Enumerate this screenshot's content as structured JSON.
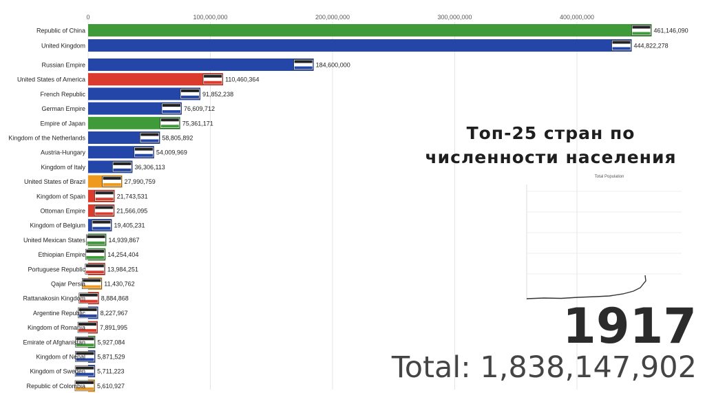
{
  "title_lines": [
    "Топ-25 стран по",
    "численности населения"
  ],
  "year": "1917",
  "total_text": "Total: 1,838,147,902",
  "mini_chart": {
    "title": "Total Population"
  },
  "colors": {
    "green": "#3f9a3a",
    "blue": "#2346a8",
    "red": "#db3b2c",
    "orange": "#ef9a1f",
    "grid": "#e4e4e4"
  },
  "chart_data": {
    "type": "bar",
    "orientation": "horizontal",
    "xlim": [
      0,
      500000000
    ],
    "x_ticks": [
      0,
      100000000,
      200000000,
      300000000,
      400000000
    ],
    "x_tick_labels": [
      "0",
      "100,000,000",
      "200,000,000",
      "300,000,000",
      "400,000,000"
    ],
    "grid": true,
    "categories": [
      "Republic of China",
      "United Kingdom",
      "Russian Empire",
      "United States of America",
      "French Republic",
      "German Empire",
      "Empire of Japan",
      "Kingdom of the Netherlands",
      "Austria-Hungary",
      "Kingdom of Italy",
      "United States of Brazil",
      "Kingdom of Spain",
      "Ottoman Empire",
      "Kingdom of Belgium",
      "United Mexican States",
      "Ethiopian Empire",
      "Portuguese Republic",
      "Qajar Persia",
      "Rattanakosin Kingdom",
      "Argentine Republic",
      "Kingdom of Romania",
      "Emirate of Afghanistan",
      "Kingdom of Nepal",
      "Kingdom of Sweden",
      "Republic of Colombia"
    ],
    "values": [
      461146090,
      444822278,
      184600000,
      110460364,
      91852238,
      76609712,
      75361171,
      58805892,
      54009969,
      36306113,
      27990759,
      21743531,
      21566095,
      19405231,
      14939867,
      14254404,
      13984251,
      11430762,
      8884868,
      8227967,
      7891995,
      5927084,
      5871529,
      5711223,
      5610927
    ],
    "value_labels": [
      "461,146,090",
      "444,822,278",
      "184,600,000",
      "110,460,364",
      "91,852,238",
      "76,609,712",
      "75,361,171",
      "58,805,892",
      "54,009,969",
      "36,306,113",
      "27,990,759",
      "21,743,531",
      "21,566,095",
      "19,405,231",
      "14,939,867",
      "14,254,404",
      "13,984,251",
      "11,430,762",
      "8,884,868",
      "8,227,967",
      "7,891,995",
      "5,927,084",
      "5,871,529",
      "5,711,223",
      "5,610,927"
    ],
    "bar_colors": [
      "green",
      "blue",
      "blue",
      "red",
      "blue",
      "blue",
      "green",
      "blue",
      "blue",
      "blue",
      "orange",
      "red",
      "red",
      "blue",
      "green",
      "green",
      "red",
      "orange",
      "red",
      "blue",
      "red",
      "green",
      "blue",
      "blue",
      "orange"
    ],
    "flags": [
      "china-five-stripe-flag",
      "union-jack-flag",
      "russian-imperial-flag",
      "us-flag",
      "french-flag",
      "german-imperial-flag",
      "japanese-flag",
      "dutch-flag",
      "austria-hungary-flag",
      "italian-flag",
      "brazilian-flag",
      "spanish-flag",
      "ottoman-flag",
      "belgian-flag",
      "mexican-flag",
      "ethiopian-flag",
      "portuguese-flag",
      "persian-flag",
      "siam-flag",
      "argentine-flag",
      "romanian-flag",
      "afghan-flag",
      "nepal-flag",
      "swedish-flag",
      "colombian-flag"
    ]
  }
}
